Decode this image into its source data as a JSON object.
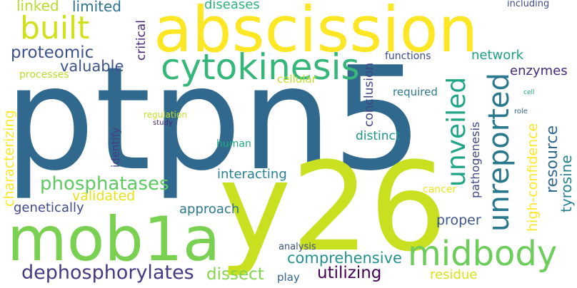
{
  "words": [
    {
      "id": "ptpn5",
      "text": "ptpn5",
      "color": "#31688e"
    },
    {
      "id": "abscission",
      "text": "abscission",
      "color": "#fde725"
    },
    {
      "id": "y26",
      "text": "y26",
      "color": "#c8e020"
    },
    {
      "id": "mob1a",
      "text": "mob1a",
      "color": "#7ad151"
    },
    {
      "id": "midbody",
      "text": "midbody",
      "color": "#6ccd5a"
    },
    {
      "id": "cytokinesis",
      "text": "cytokinesis",
      "color": "#35b779"
    },
    {
      "id": "built",
      "text": "built",
      "color": "#d0e11c"
    },
    {
      "id": "unveiled",
      "text": "unveiled",
      "color": "#20a486"
    },
    {
      "id": "unreported",
      "text": "unreported",
      "color": "#2a788e"
    },
    {
      "id": "dephosphorylates",
      "text": "dephosphorylates",
      "color": "#443983"
    },
    {
      "id": "proteomic",
      "text": "proteomic",
      "color": "#3b528b"
    },
    {
      "id": "phosphatases",
      "text": "phosphatases",
      "color": "#5ec962"
    },
    {
      "id": "valuable",
      "text": "valuable",
      "color": "#3b528b"
    },
    {
      "id": "comprehensive",
      "text": "comprehensive",
      "color": "#21918c"
    },
    {
      "id": "utilizing",
      "text": "utilizing",
      "color": "#440154"
    },
    {
      "id": "dissect",
      "text": "dissect",
      "color": "#84d44b"
    },
    {
      "id": "linked",
      "text": "linked",
      "color": "#b5de2b"
    },
    {
      "id": "limited",
      "text": "limited",
      "color": "#2c728e"
    },
    {
      "id": "diseases",
      "text": "diseases",
      "color": "#2db27d"
    },
    {
      "id": "including",
      "text": "including",
      "color": "#3e4a89"
    },
    {
      "id": "critical",
      "text": "critical",
      "color": "#482475"
    },
    {
      "id": "network",
      "text": "network",
      "color": "#1f9e89"
    },
    {
      "id": "enzymes",
      "text": "enzymes",
      "color": "#482878"
    },
    {
      "id": "functions",
      "text": "functions",
      "color": "#3e4989"
    },
    {
      "id": "processes",
      "text": "processes",
      "color": "#b8de29"
    },
    {
      "id": "cellular",
      "text": "cellular",
      "color": "#bddf26"
    },
    {
      "id": "conclusion",
      "text": "conclusion",
      "color": "#414487"
    },
    {
      "id": "required",
      "text": "required",
      "color": "#2a788e"
    },
    {
      "id": "characterizing",
      "text": "characterizing",
      "color": "#fde725"
    },
    {
      "id": "regulation",
      "text": "regulation",
      "color": "#c2df23"
    },
    {
      "id": "study",
      "text": "study",
      "color": "#482475"
    },
    {
      "id": "identify",
      "text": "identify",
      "color": "#433e85"
    },
    {
      "id": "human",
      "text": "human",
      "color": "#22a884"
    },
    {
      "id": "distinct",
      "text": "distinct",
      "color": "#1f968b"
    },
    {
      "id": "pathogenesis",
      "text": "pathogenesis",
      "color": "#3f4788"
    },
    {
      "id": "high-confidence",
      "text": "high-confidence",
      "color": "#fde725"
    },
    {
      "id": "resource",
      "text": "resource",
      "color": "#31688e"
    },
    {
      "id": "tyrosine",
      "text": "tyrosine",
      "color": "#25838e"
    },
    {
      "id": "cell",
      "text": "cell",
      "color": "#20a386"
    },
    {
      "id": "role",
      "text": "role",
      "color": "#33638d"
    },
    {
      "id": "interacting",
      "text": "interacting",
      "color": "#26828e"
    },
    {
      "id": "validated",
      "text": "validated",
      "color": "#e5e419"
    },
    {
      "id": "genetically",
      "text": "genetically",
      "color": "#3e4a89"
    },
    {
      "id": "approach",
      "text": "approach",
      "color": "#2a788e"
    },
    {
      "id": "proper",
      "text": "proper",
      "color": "#39568c"
    },
    {
      "id": "cancer",
      "text": "cancer",
      "color": "#efe51c"
    },
    {
      "id": "analysis",
      "text": "analysis",
      "color": "#3d4e8a"
    },
    {
      "id": "play",
      "text": "play",
      "color": "#33638d"
    },
    {
      "id": "residue",
      "text": "residue",
      "color": "#d8e219"
    }
  ]
}
